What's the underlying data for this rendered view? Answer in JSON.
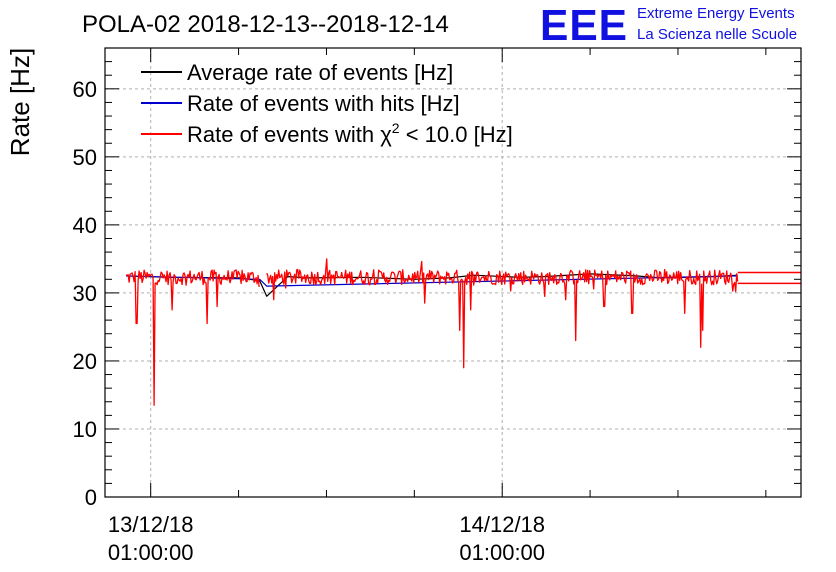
{
  "title": "POLA-02 2018-12-13--2018-12-14",
  "logo": {
    "mark": "EEE",
    "line1": "Extreme Energy Events",
    "line2": "La Scienza nelle Scuole"
  },
  "colors": {
    "average": "#000000",
    "hits": "#0000cc",
    "chi2": "#ff0000",
    "logo": "#1010e0",
    "grid": "#b0b0b0"
  },
  "chart_data": {
    "type": "line",
    "title": "POLA-02 2018-12-13--2018-12-14",
    "ylabel": "Rate [Hz]",
    "xlabel": "",
    "ylim": [
      0,
      66
    ],
    "xlim_hours": [
      -1.3,
      18.5
    ],
    "grid": true,
    "y_ticks": [
      0,
      10,
      20,
      30,
      40,
      50,
      60
    ],
    "x_ticks": [
      {
        "hours": 0,
        "line1": "13/12/18",
        "line2": "01:00:00"
      },
      {
        "hours": 10,
        "line1": "14/12/18",
        "line2": "01:00:00"
      }
    ],
    "legend": {
      "position": "top-left",
      "entries": [
        {
          "label": "Average rate of events [Hz]",
          "series": "average"
        },
        {
          "label": "Rate of events with hits [Hz]",
          "series": "hits"
        },
        {
          "label_prefix": "Rate of events with ",
          "label_symbol": "χ",
          "label_sup": "2",
          "label_suffix": " < 10.0 [Hz]",
          "series": "chi2"
        }
      ]
    },
    "series": [
      {
        "name": "Average rate of events [Hz]",
        "key": "average",
        "color": "#000000",
        "x_hours": [
          -0.7,
          0.5,
          2.5,
          3.1,
          3.3,
          3.9,
          4.5,
          6.0,
          7.5,
          8.5,
          9.2,
          10.5,
          11.2,
          12.5,
          13.8,
          14.5,
          16.0,
          16.7
        ],
        "values": [
          32.5,
          32.3,
          32.2,
          31.8,
          29.5,
          32.4,
          32.2,
          32.3,
          32.0,
          32.2,
          32.6,
          32.3,
          32.4,
          32.8,
          32.5,
          32.2,
          32.4,
          32.6
        ]
      },
      {
        "name": "Rate of events with hits [Hz]",
        "key": "hits",
        "color": "#0000cc",
        "x_hours": [
          -0.7,
          3.1,
          3.3,
          16.7
        ],
        "values": [
          32.5,
          32.0,
          31.0,
          32.5
        ]
      },
      {
        "name": "Rate of events with χ² < 10.0 [Hz]",
        "key": "chi2",
        "color": "#ff0000",
        "baseline": 32.3,
        "noise": 1.1,
        "x_start_hours": -0.7,
        "x_end_hours": 16.7,
        "gap_hours": [
          3.1,
          3.3
        ],
        "spikes": [
          {
            "hours": -0.4,
            "value": 25.5
          },
          {
            "hours": 0.1,
            "value": 13.5
          },
          {
            "hours": 0.6,
            "value": 27.5
          },
          {
            "hours": 1.6,
            "value": 25.5
          },
          {
            "hours": 1.9,
            "value": 28.0
          },
          {
            "hours": 3.5,
            "value": 29.0
          },
          {
            "hours": 5.0,
            "value": 35.0
          },
          {
            "hours": 7.8,
            "value": 28.5
          },
          {
            "hours": 8.8,
            "value": 24.5
          },
          {
            "hours": 8.9,
            "value": 19.0
          },
          {
            "hours": 9.1,
            "value": 27.5
          },
          {
            "hours": 11.2,
            "value": 29.5
          },
          {
            "hours": 11.8,
            "value": 29.0
          },
          {
            "hours": 12.1,
            "value": 23.0
          },
          {
            "hours": 12.9,
            "value": 28.0
          },
          {
            "hours": 13.7,
            "value": 27.0
          },
          {
            "hours": 15.2,
            "value": 27.0
          },
          {
            "hours": 15.65,
            "value": 22.0
          },
          {
            "hours": 15.7,
            "value": 24.5
          }
        ],
        "extensions": [
          {
            "from_hours": 16.7,
            "to_hours": 18.5,
            "value": 33.0
          },
          {
            "from_hours": 16.7,
            "to_hours": 18.5,
            "value": 31.4
          }
        ]
      }
    ]
  }
}
